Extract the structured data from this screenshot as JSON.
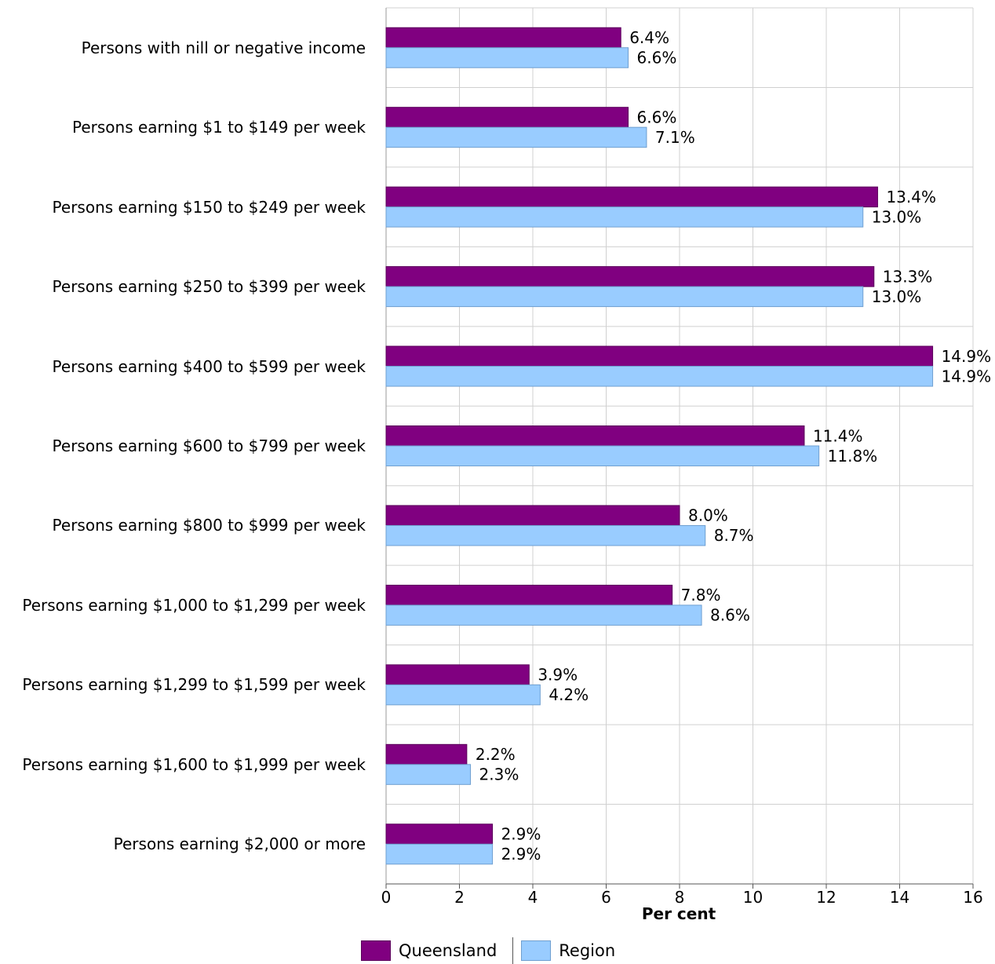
{
  "chart_data": {
    "type": "bar",
    "orientation": "horizontal",
    "categories": [
      "Persons with nill or negative income",
      "Persons earning $1 to $149 per week",
      "Persons earning $150 to $249 per week",
      "Persons earning $250 to $399 per week",
      "Persons earning $400 to $599 per week",
      "Persons earning $600 to $799 per week",
      "Persons earning $800 to $999 per week",
      "Persons earning $1,000 to $1,299 per week",
      "Persons earning $1,299 to $1,599 per week",
      "Persons earning $1,600 to $1,999 per week",
      "Persons earning $2,000 or more"
    ],
    "series": [
      {
        "name": "Queensland",
        "color": "#800080",
        "values": [
          6.4,
          6.6,
          13.4,
          13.3,
          14.9,
          11.4,
          8.0,
          7.8,
          3.9,
          2.2,
          2.9
        ],
        "labels": [
          "6.4%",
          "6.6%",
          "13.4%",
          "13.3%",
          "14.9%",
          "11.4%",
          "8.0%",
          "7.8%",
          "3.9%",
          "2.2%",
          "2.9%"
        ]
      },
      {
        "name": "Region",
        "color": "#99CCFF",
        "values": [
          6.6,
          7.1,
          13.0,
          13.0,
          14.9,
          11.8,
          8.7,
          8.6,
          4.2,
          2.3,
          2.9
        ],
        "labels": [
          "6.6%",
          "7.1%",
          "13.0%",
          "13.0%",
          "14.9%",
          "11.8%",
          "8.7%",
          "8.6%",
          "4.2%",
          "2.3%",
          "2.9%"
        ]
      }
    ],
    "xlabel": "Per cent",
    "xlim": [
      0,
      16
    ],
    "xticks": [
      "0",
      "2",
      "4",
      "6",
      "8",
      "10",
      "12",
      "14",
      "16"
    ],
    "grid": true,
    "legend_position": "bottom"
  }
}
